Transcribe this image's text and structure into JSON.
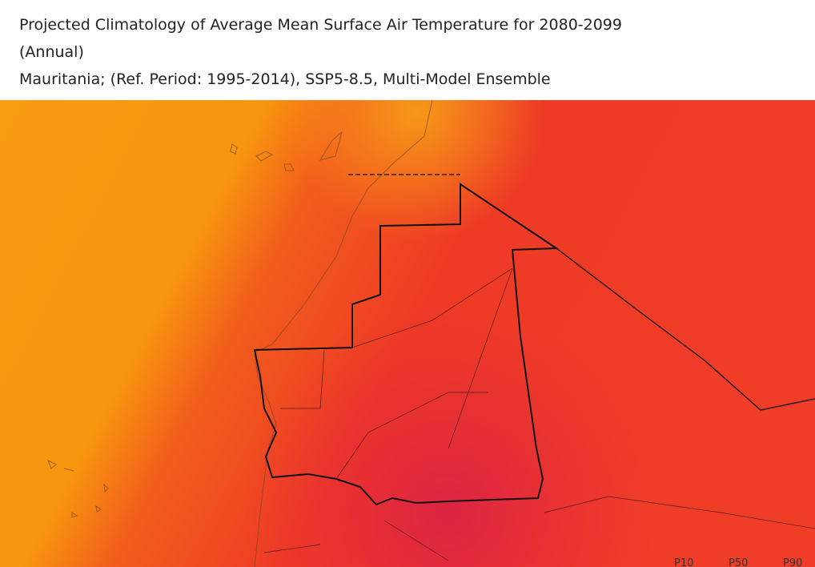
{
  "header": {
    "title": "Projected Climatology of Average Mean Surface Air Temperature for 2080-2099",
    "period": "(Annual)",
    "subtitle": "Mauritania; (Ref. Period: 1995-2014), SSP5-8.5, Multi-Model Ensemble"
  },
  "map": {
    "legend": [
      "P10",
      "P50",
      "P90"
    ]
  }
}
